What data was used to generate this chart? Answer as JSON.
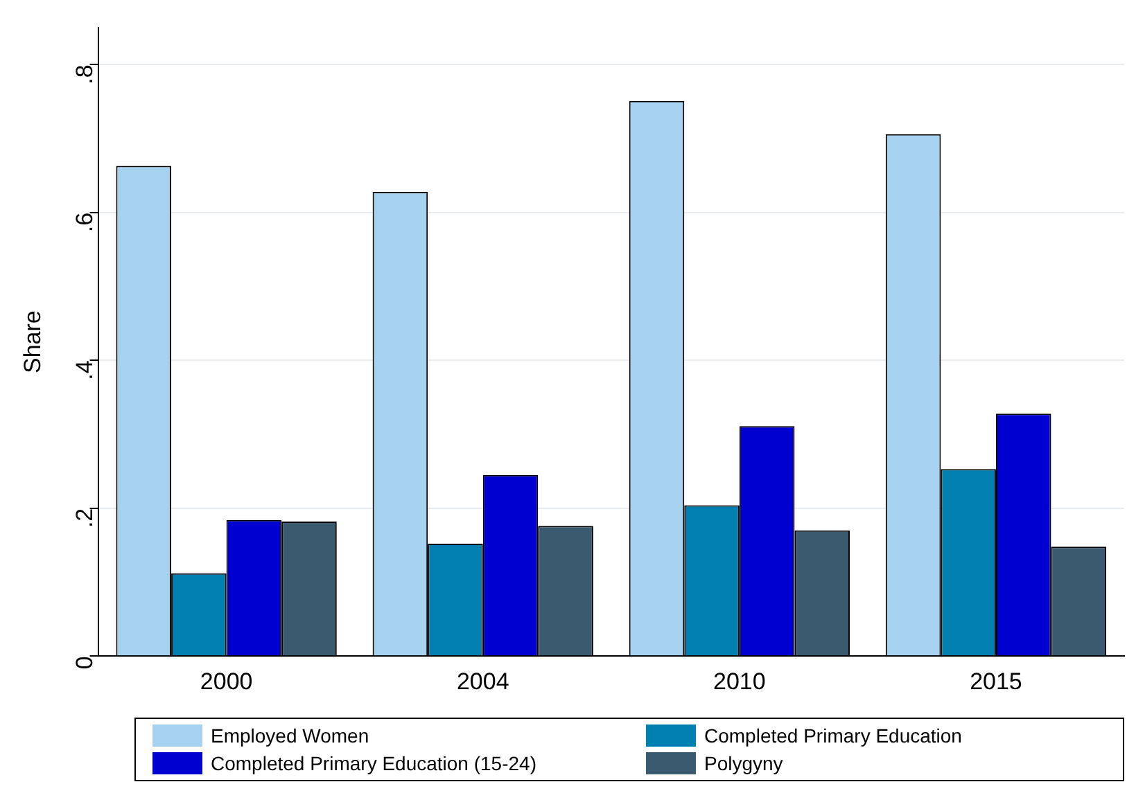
{
  "chart_data": {
    "type": "bar",
    "ylabel": "Share",
    "categories": [
      "2000",
      "2004",
      "2010",
      "2015"
    ],
    "series": [
      {
        "name": "Employed Women",
        "color": "#a6d2f0",
        "values": [
          0.663,
          0.628,
          0.751,
          0.706
        ]
      },
      {
        "name": "Completed Primary Education",
        "color": "#0080b0",
        "values": [
          0.112,
          0.152,
          0.204,
          0.253
        ]
      },
      {
        "name": "Completed Primary Education (15-24)",
        "color": "#0000d0",
        "values": [
          0.184,
          0.245,
          0.311,
          0.328
        ]
      },
      {
        "name": "Polygyny",
        "color": "#3a5a70",
        "values": [
          0.182,
          0.176,
          0.17,
          0.148
        ]
      }
    ],
    "ylim": [
      0,
      0.85
    ],
    "yticks": [
      {
        "value": 0,
        "label": "0"
      },
      {
        "value": 0.2,
        "label": ".2"
      },
      {
        "value": 0.4,
        "label": ".4"
      },
      {
        "value": 0.6,
        "label": ".6"
      },
      {
        "value": 0.8,
        "label": ".8"
      }
    ],
    "grid": "y",
    "legend": "bottom"
  }
}
